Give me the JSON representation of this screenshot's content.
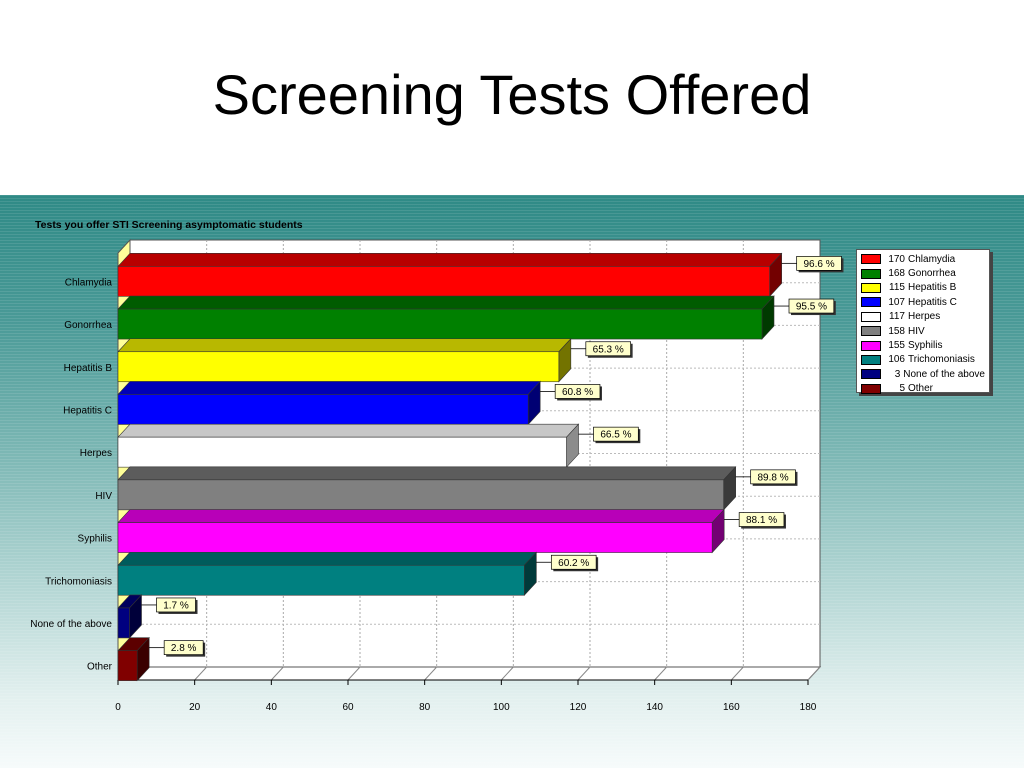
{
  "slide": {
    "title": "Screening Tests Offered"
  },
  "chart_data": {
    "type": "bar",
    "orientation": "horizontal",
    "title": "Tests you offer STI Screening asymptomatic students",
    "categories": [
      "Chlamydia",
      "Gonorrhea",
      "Hepatitis B",
      "Hepatitis C",
      "Herpes",
      "HIV",
      "Syphilis",
      "Trichomoniasis",
      "None of the above",
      "Other"
    ],
    "values": [
      170,
      168,
      115,
      107,
      117,
      158,
      155,
      106,
      3,
      5
    ],
    "data_labels": [
      "96.6 %",
      "95.5 %",
      "65.3 %",
      "60.8 %",
      "66.5 %",
      "89.8 %",
      "88.1 %",
      "60.2 %",
      "1.7 %",
      "2.8 %"
    ],
    "colors": [
      "#ff0000",
      "#008000",
      "#ffff00",
      "#0000ff",
      "#ffffff",
      "#808080",
      "#ff00ff",
      "#008080",
      "#000080",
      "#800000"
    ],
    "xlim": [
      0,
      180
    ],
    "xticks": [
      0,
      20,
      40,
      60,
      80,
      100,
      120,
      140,
      160,
      180
    ],
    "grid": true,
    "three_d": true,
    "legend": {
      "placement": "right",
      "items": [
        {
          "count": "170",
          "label": "Chlamydia"
        },
        {
          "count": "168",
          "label": "Gonorrhea"
        },
        {
          "count": "115",
          "label": "Hepatitis B"
        },
        {
          "count": "107",
          "label": "Hepatitis C"
        },
        {
          "count": "117",
          "label": "Herpes"
        },
        {
          "count": "158",
          "label": "HIV"
        },
        {
          "count": "155",
          "label": "Syphilis"
        },
        {
          "count": "106",
          "label": "Trichomoniasis"
        },
        {
          "count": "3",
          "label": "None of the above"
        },
        {
          "count": "5",
          "label": "Other"
        }
      ]
    }
  }
}
